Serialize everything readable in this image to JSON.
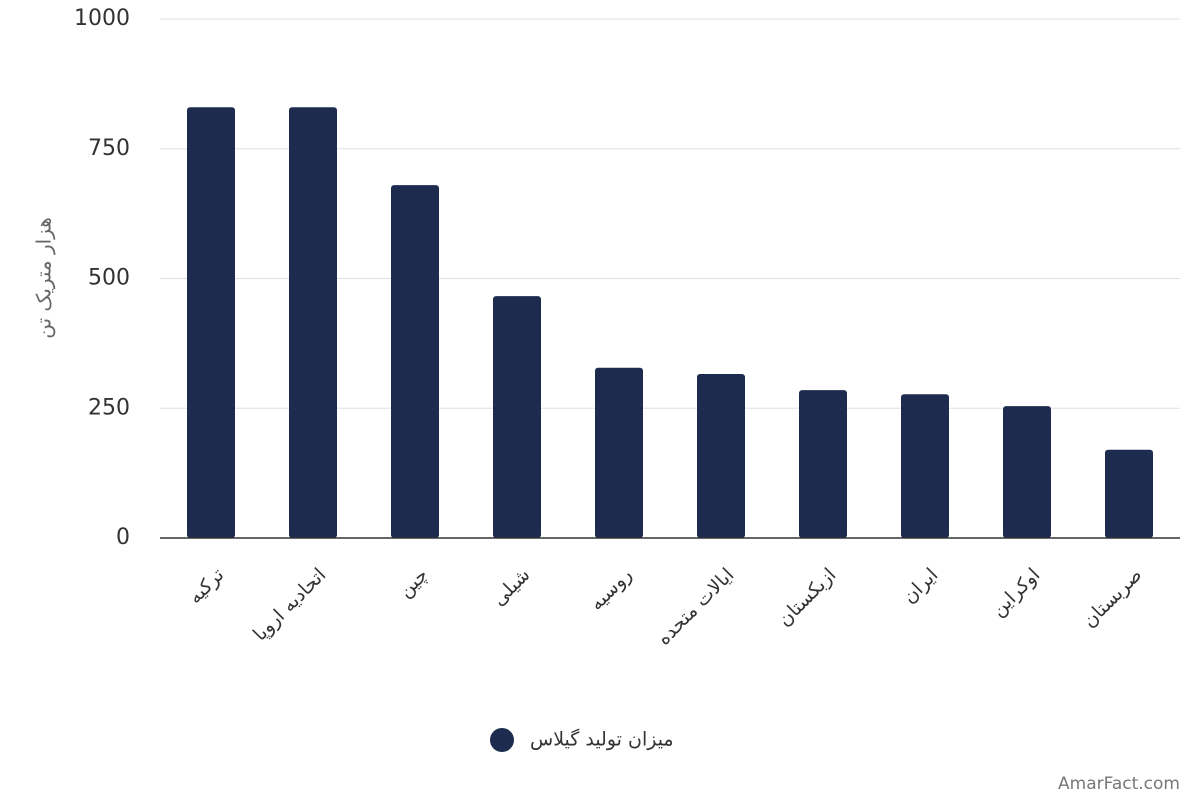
{
  "chart_data": {
    "type": "bar",
    "y_label": "هزار متریک تن",
    "categories": [
      "ترکیه",
      "اتحادیه اروپا",
      "چین",
      "شیلی",
      "روسیه",
      "ایالات متحده",
      "ازبکستان",
      "ایران",
      "اوکراین",
      "صربستان"
    ],
    "series": [
      {
        "name": "میزان تولید گیلاس",
        "color": "#1c2b4e",
        "values": [
          830,
          830,
          680,
          466,
          328,
          316,
          285,
          277,
          254,
          170
        ]
      }
    ],
    "ylim": [
      0,
      1000
    ],
    "yticks": [
      0,
      250,
      500,
      750,
      1000
    ],
    "grid": true,
    "legend": "bottom",
    "watermark": "AmarFact.com"
  }
}
